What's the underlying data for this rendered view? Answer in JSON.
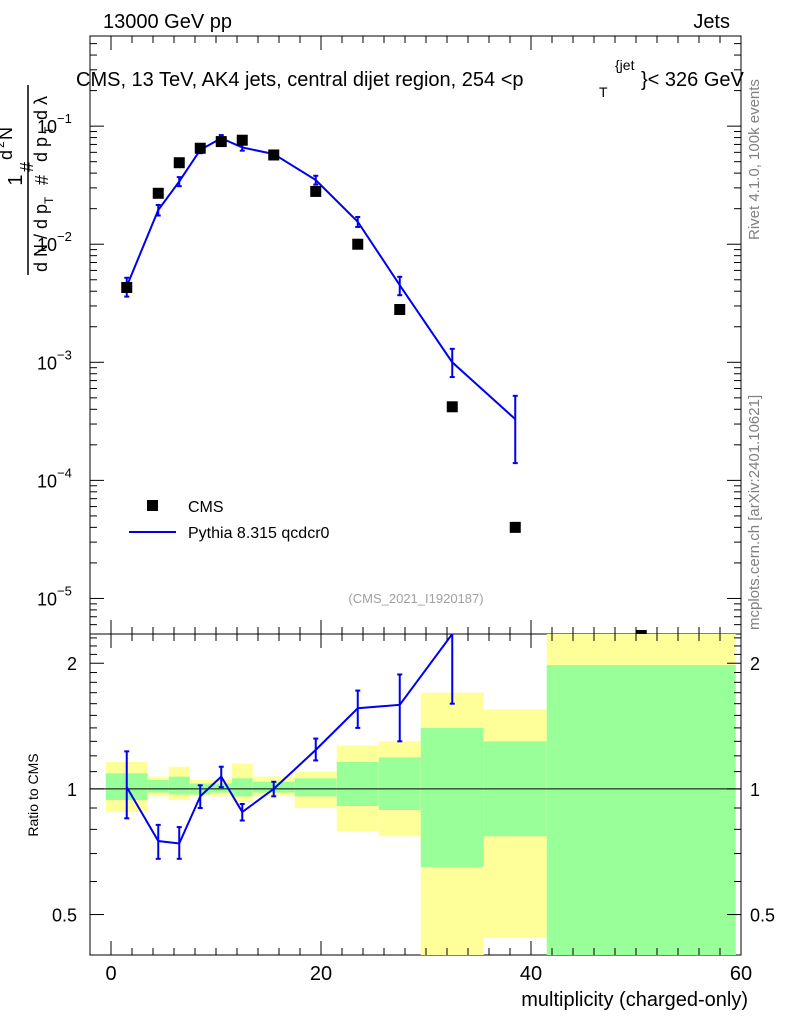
{
  "header": {
    "energy_label": "13000 GeV pp",
    "category": "Jets"
  },
  "side_labels": {
    "rivet": "Rivet 4.1.0,  100k events",
    "mcplots": "mcplots.cern.ch [arXiv:2401.10621]"
  },
  "analysis_id": "(CMS_2021_I1920187)",
  "chart_data": [
    {
      "type": "line",
      "panel": "main",
      "title": "CMS, 13 TeV, AK4 jets, central dijet region, 254 <p_T^{jet}< 326 GeV",
      "title_parts": {
        "main": "CMS, 13 TeV, AK4 jets, central dijet region, 254 <p",
        "sub": "T",
        "sup": "{jet",
        "tail": "}< 326 GeV"
      },
      "ylabel": "1/(dN/dp_T) d²N/(dp_T dλ)",
      "xlim": [
        -2,
        60
      ],
      "ylim": [
        5e-06,
        0.58
      ],
      "yscale": "log",
      "yticks": [
        {
          "value": 1e-05,
          "base": "10",
          "exp": "−5"
        },
        {
          "value": 0.0001,
          "base": "10",
          "exp": "−4"
        },
        {
          "value": 0.001,
          "base": "10",
          "exp": "−3"
        },
        {
          "value": 0.01,
          "base": "10",
          "exp": "−2"
        },
        {
          "value": 0.1,
          "base": "10",
          "exp": "−1"
        }
      ],
      "legend": {
        "position": "bottom-left",
        "entries": [
          "CMS",
          "Pythia 8.315 qcdcr0"
        ]
      },
      "series": [
        {
          "name": "CMS",
          "style": "markers",
          "color": "#000000",
          "points": [
            {
              "x": 1.5,
              "y": 0.0043
            },
            {
              "x": 4.5,
              "y": 0.027
            },
            {
              "x": 6.5,
              "y": 0.049
            },
            {
              "x": 8.5,
              "y": 0.065
            },
            {
              "x": 10.5,
              "y": 0.074
            },
            {
              "x": 12.5,
              "y": 0.076
            },
            {
              "x": 15.5,
              "y": 0.057
            },
            {
              "x": 19.5,
              "y": 0.028
            },
            {
              "x": 23.5,
              "y": 0.01
            },
            {
              "x": 27.5,
              "y": 0.0028
            },
            {
              "x": 32.5,
              "y": 0.00042
            },
            {
              "x": 38.5,
              "y": 4e-05
            },
            {
              "x": 50.5,
              "y": 4e-06
            }
          ]
        },
        {
          "name": "Pythia 8.315 qcdcr0",
          "style": "line",
          "color": "#0000ee",
          "points": [
            {
              "x": 1.5,
              "y": 0.0044,
              "lo": 0.0036,
              "hi": 0.0052
            },
            {
              "x": 4.5,
              "y": 0.0195,
              "lo": 0.0175,
              "hi": 0.0215
            },
            {
              "x": 6.5,
              "y": 0.034,
              "lo": 0.031,
              "hi": 0.037
            },
            {
              "x": 8.5,
              "y": 0.063,
              "lo": 0.059,
              "hi": 0.067
            },
            {
              "x": 10.5,
              "y": 0.079,
              "lo": 0.074,
              "hi": 0.084
            },
            {
              "x": 12.5,
              "y": 0.066,
              "lo": 0.062,
              "hi": 0.07
            },
            {
              "x": 15.5,
              "y": 0.058,
              "lo": 0.055,
              "hi": 0.061
            },
            {
              "x": 19.5,
              "y": 0.035,
              "lo": 0.032,
              "hi": 0.038
            },
            {
              "x": 23.5,
              "y": 0.0155,
              "lo": 0.014,
              "hi": 0.017
            },
            {
              "x": 27.5,
              "y": 0.0045,
              "lo": 0.0037,
              "hi": 0.0053
            },
            {
              "x": 32.5,
              "y": 0.001,
              "lo": 0.00075,
              "hi": 0.0013
            },
            {
              "x": 38.5,
              "y": 0.00033,
              "lo": 0.00014,
              "hi": 0.00052
            }
          ]
        }
      ]
    },
    {
      "type": "line",
      "panel": "ratio",
      "xlabel": "multiplicity (charged-only)",
      "ylabel": "Ratio to CMS",
      "xlim": [
        -2,
        60
      ],
      "ylim": [
        0.4,
        2.35
      ],
      "yscale": "log",
      "xticks": [
        0,
        20,
        40,
        60
      ],
      "yticks": [
        0.5,
        1,
        2
      ],
      "bands": [
        {
          "x0": -0.5,
          "x1": 3.5,
          "yellow": [
            0.88,
            1.16
          ],
          "green": [
            0.94,
            1.09
          ]
        },
        {
          "x0": 3.5,
          "x1": 5.5,
          "yellow": [
            0.96,
            1.07
          ],
          "green": [
            0.98,
            1.05
          ]
        },
        {
          "x0": 5.5,
          "x1": 7.5,
          "yellow": [
            0.94,
            1.13
          ],
          "green": [
            0.97,
            1.07
          ]
        },
        {
          "x0": 7.5,
          "x1": 9.5,
          "yellow": [
            0.96,
            1.05
          ],
          "green": [
            0.97,
            1.03
          ]
        },
        {
          "x0": 9.5,
          "x1": 11.5,
          "yellow": [
            0.96,
            1.05
          ],
          "green": [
            0.98,
            1.03
          ]
        },
        {
          "x0": 11.5,
          "x1": 13.5,
          "yellow": [
            0.93,
            1.15
          ],
          "green": [
            0.96,
            1.06
          ]
        },
        {
          "x0": 13.5,
          "x1": 17.5,
          "yellow": [
            0.96,
            1.07
          ],
          "green": [
            0.98,
            1.04
          ]
        },
        {
          "x0": 17.5,
          "x1": 21.5,
          "yellow": [
            0.9,
            1.1
          ],
          "green": [
            0.96,
            1.06
          ]
        },
        {
          "x0": 21.5,
          "x1": 25.5,
          "yellow": [
            0.79,
            1.27
          ],
          "green": [
            0.91,
            1.16
          ]
        },
        {
          "x0": 25.5,
          "x1": 29.5,
          "yellow": [
            0.77,
            1.3
          ],
          "green": [
            0.89,
            1.19
          ]
        },
        {
          "x0": 29.5,
          "x1": 35.5,
          "yellow": [
            0.34,
            1.7
          ],
          "green": [
            0.65,
            1.4
          ]
        },
        {
          "x0": 35.5,
          "x1": 41.5,
          "yellow": [
            0.44,
            1.55
          ],
          "green": [
            0.77,
            1.3
          ]
        },
        {
          "x0": 41.5,
          "x1": 59.5,
          "yellow": [
            0.1,
            3.2
          ],
          "green": [
            0.1,
            1.98
          ]
        }
      ],
      "series": [
        {
          "name": "Pythia 8.315 qcdcr0 / CMS",
          "style": "line",
          "color": "#0000ee",
          "points": [
            {
              "x": 1.5,
              "y": 1.01,
              "lo": 0.85,
              "hi": 1.23
            },
            {
              "x": 4.5,
              "y": 0.75,
              "lo": 0.68,
              "hi": 0.82
            },
            {
              "x": 6.5,
              "y": 0.74,
              "lo": 0.68,
              "hi": 0.81
            },
            {
              "x": 8.5,
              "y": 0.96,
              "lo": 0.9,
              "hi": 1.02
            },
            {
              "x": 10.5,
              "y": 1.07,
              "lo": 1.01,
              "hi": 1.13
            },
            {
              "x": 12.5,
              "y": 0.88,
              "lo": 0.84,
              "hi": 0.92
            },
            {
              "x": 15.5,
              "y": 1.0,
              "lo": 0.96,
              "hi": 1.04
            },
            {
              "x": 19.5,
              "y": 1.24,
              "lo": 1.17,
              "hi": 1.32
            },
            {
              "x": 23.5,
              "y": 1.56,
              "lo": 1.4,
              "hi": 1.72
            },
            {
              "x": 27.5,
              "y": 1.59,
              "lo": 1.3,
              "hi": 1.88
            },
            {
              "x": 32.5,
              "y": 2.38,
              "lo": 1.6,
              "hi": 3.1
            }
          ]
        }
      ]
    }
  ]
}
